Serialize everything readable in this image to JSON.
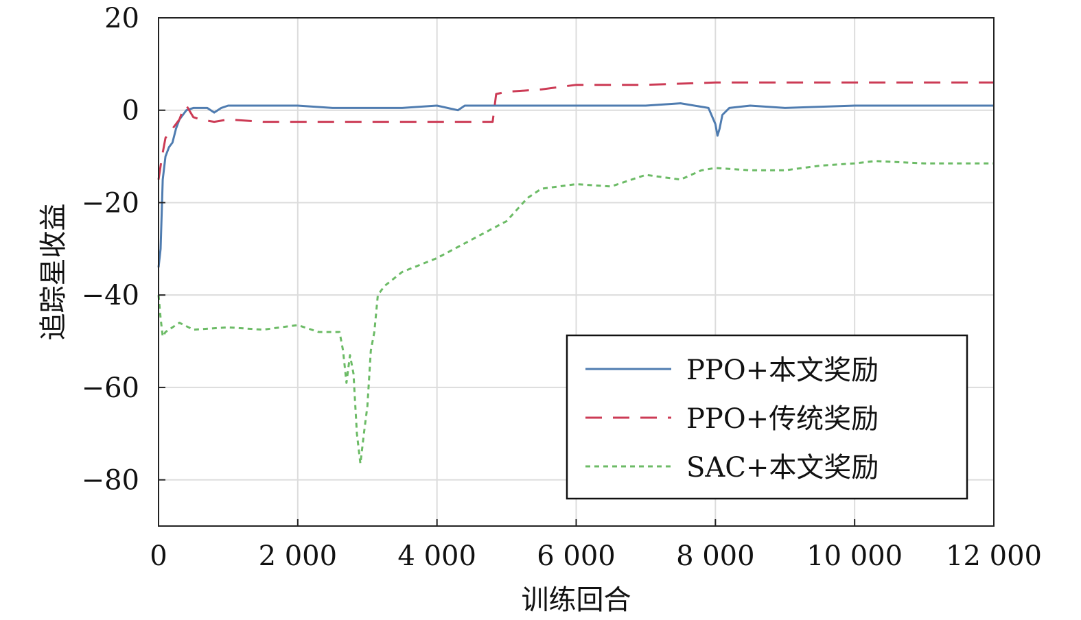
{
  "chart_data": {
    "type": "line",
    "xlabel": "训练回合",
    "ylabel": "追踪星收益",
    "xlim": [
      0,
      12000
    ],
    "ylim": [
      -90,
      20
    ],
    "x_ticks": [
      0,
      2000,
      4000,
      6000,
      8000,
      10000,
      12000
    ],
    "x_tick_labels": [
      "0",
      "2 000",
      "4 000",
      "6 000",
      "8 000",
      "10 000",
      "12 000"
    ],
    "y_ticks": [
      20,
      0,
      -20,
      -40,
      -60,
      -80
    ],
    "y_tick_labels": [
      "20",
      "0",
      "−20",
      "−40",
      "−60",
      "−80"
    ],
    "grid": true,
    "legend_position": "bottom-right",
    "series": [
      {
        "name": "PPO+本文奖励",
        "color": "#4f7cb0",
        "style": "solid",
        "x": [
          0,
          30,
          60,
          100,
          150,
          200,
          250,
          300,
          350,
          400,
          500,
          700,
          800,
          900,
          1000,
          1500,
          2000,
          2500,
          3000,
          3500,
          4000,
          4300,
          4400,
          5000,
          6000,
          7000,
          7500,
          7900,
          8000,
          8030,
          8060,
          8100,
          8200,
          8500,
          9000,
          10000,
          11000,
          12000
        ],
        "y": [
          -34,
          -30,
          -15,
          -10,
          -8,
          -7,
          -4,
          -2,
          -1,
          0,
          0.5,
          0.5,
          -0.5,
          0.5,
          1,
          1,
          1,
          0.5,
          0.5,
          0.5,
          1,
          0,
          1,
          1,
          1,
          1,
          1.5,
          0.5,
          -3,
          -5.5,
          -4,
          -1,
          0.5,
          1,
          0.5,
          1,
          1,
          1
        ]
      },
      {
        "name": "PPO+传统奖励",
        "color": "#cc3b55",
        "style": "dashed",
        "x": [
          0,
          50,
          100,
          200,
          250,
          300,
          350,
          400,
          500,
          600,
          800,
          1000,
          1500,
          2000,
          2500,
          3000,
          3500,
          4000,
          4500,
          4800,
          4850,
          5000,
          5500,
          6000,
          7000,
          8000,
          9000,
          10000,
          11000,
          12000
        ],
        "y": [
          -15,
          -10,
          -6,
          -4,
          -3,
          -2,
          0,
          1,
          -1.5,
          -2,
          -2.5,
          -2,
          -2.5,
          -2.5,
          -2.5,
          -2.5,
          -2.5,
          -2.5,
          -2.5,
          -2.5,
          3.5,
          4,
          4.5,
          5.5,
          5.5,
          6,
          6,
          6,
          6,
          6
        ]
      },
      {
        "name": "SAC+本文奖励",
        "color": "#6cbb66",
        "style": "dotted",
        "x": [
          0,
          30,
          60,
          100,
          200,
          300,
          500,
          1000,
          1500,
          2000,
          2300,
          2600,
          2650,
          2700,
          2750,
          2800,
          2850,
          2900,
          2950,
          3000,
          3050,
          3100,
          3150,
          3200,
          3250,
          3500,
          4000,
          4500,
          5000,
          5300,
          5500,
          6000,
          6500,
          7000,
          7500,
          7800,
          8000,
          8500,
          9000,
          9500,
          10000,
          10300,
          11000,
          12000
        ],
        "y": [
          -40,
          -45,
          -49,
          -48,
          -47,
          -46,
          -47.5,
          -47,
          -47.5,
          -46.5,
          -48,
          -48,
          -52,
          -59,
          -53,
          -57,
          -70,
          -76.5,
          -70,
          -64,
          -52,
          -48,
          -40,
          -39,
          -38,
          -35,
          -32,
          -28,
          -24,
          -19,
          -17,
          -16,
          -16.5,
          -14,
          -15,
          -13,
          -12.5,
          -13,
          -13,
          -12,
          -11.5,
          -11,
          -11.5,
          -11.5
        ]
      }
    ]
  },
  "legend": {
    "entries": [
      "PPO+本文奖励",
      "PPO+传统奖励",
      "SAC+本文奖励"
    ]
  },
  "axes": {
    "xlabel": "训练回合",
    "ylabel": "追踪星收益"
  }
}
